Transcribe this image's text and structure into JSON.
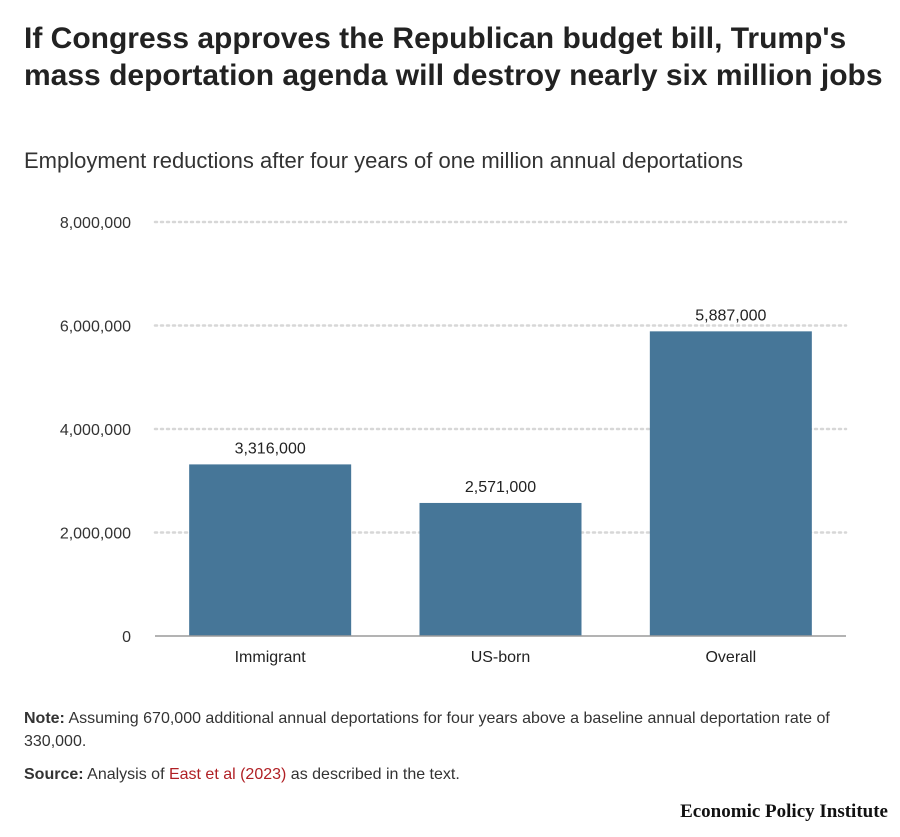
{
  "title": "If Congress approves the Republican budget bill, Trump's mass deportation agenda will destroy nearly six million jobs",
  "subtitle": "Employment reductions after four years of one million annual deportations",
  "note_label": "Note:",
  "note_text": " Assuming 670,000 additional annual deportations for four years above a baseline annual deportation rate of 330,000.",
  "source_label": "Source:",
  "source_prefix": " Analysis of ",
  "source_link_text": "East et al (2023)",
  "source_suffix": " as described in the text.",
  "brand": "Economic Policy Institute",
  "colors": {
    "bar": "#467698",
    "grid": "#d7d7d7",
    "link": "#b01f24"
  },
  "chart_data": {
    "type": "bar",
    "title": "If Congress approves the Republican budget bill, Trump's mass deportation agenda will destroy nearly six million jobs",
    "subtitle": "Employment reductions after four years of one million annual deportations",
    "categories": [
      "Immigrant",
      "US-born",
      "Overall"
    ],
    "values": [
      3316000,
      2571000,
      5887000
    ],
    "value_labels": [
      "3,316,000",
      "2,571,000",
      "5,887,000"
    ],
    "yticks": [
      0,
      2000000,
      4000000,
      6000000,
      8000000
    ],
    "ytick_labels": [
      "0",
      "2,000,000",
      "4,000,000",
      "6,000,000",
      "8,000,000"
    ],
    "ylim": [
      0,
      8000000
    ],
    "xlabel": "",
    "ylabel": "",
    "grid": true,
    "legend": "none"
  }
}
